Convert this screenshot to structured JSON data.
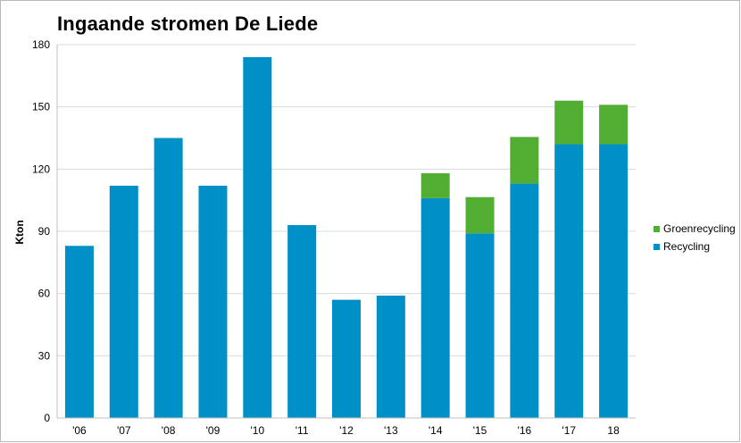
{
  "chart_data": {
    "type": "bar",
    "stacked": true,
    "title": "Ingaande stromen De Liede",
    "xlabel": "",
    "ylabel": "Kton",
    "ylim": [
      0,
      180
    ],
    "yticks": [
      0,
      30,
      60,
      90,
      120,
      150,
      180
    ],
    "grid": true,
    "legend_position": "right",
    "categories": [
      "'06",
      "'07",
      "'08",
      "'09",
      "'10",
      "'11",
      "'12",
      "'13",
      "'14",
      "'15",
      "'16",
      "'17",
      "18"
    ],
    "series": [
      {
        "name": "Recycling",
        "color": "#0090c8",
        "values": [
          83,
          112,
          135,
          112,
          174,
          93,
          57,
          59,
          106,
          89,
          113,
          132,
          132
        ]
      },
      {
        "name": "Groenrecycling",
        "color": "#52ae32",
        "values": [
          0,
          0,
          0,
          0,
          0,
          0,
          0,
          0,
          12,
          17.5,
          22.5,
          21,
          19
        ]
      }
    ],
    "legend_order": [
      "Groenrecycling",
      "Recycling"
    ]
  }
}
